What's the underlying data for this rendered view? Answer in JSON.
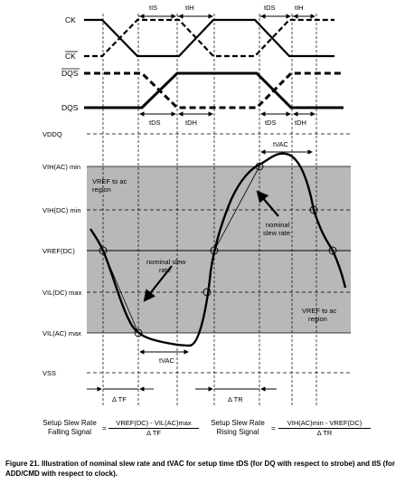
{
  "signals": {
    "ck": "CK",
    "ck_bar": "CK",
    "dqs_bar": "DQS",
    "dqs": "DQS"
  },
  "timing_top": {
    "tis_1": "tIS",
    "tih_1": "tIH",
    "tds_2": "tDS",
    "tih_2": "tIH"
  },
  "timing_dq": {
    "tds_1": "tDS",
    "tdh_1": "tDH",
    "tds_2": "tDS",
    "tdh_2": "tDH"
  },
  "levels": {
    "vddq": "VDDQ",
    "vih_ac": "VIH(AC) min",
    "vih_dc": "VIH(DC) min",
    "vref": "VREF(DC)",
    "vil_dc": "VIL(DC) max",
    "vil_ac": "VIL(AC) max",
    "vss": "VSS"
  },
  "annotations": {
    "vref_to_ac_region_top_1": "VREF to ac",
    "vref_to_ac_region_top_2": "region",
    "nominal_slew_rate_right_1": "nominal",
    "nominal_slew_rate_right_2": "slew rate",
    "nominal_slew_rate_left_1": "nominal slew",
    "nominal_slew_rate_left_2": "rate",
    "vref_to_ac_region_bottom_1": "VREF to ac",
    "vref_to_ac_region_bottom_2": "region",
    "tvac_bottom": "tVAC",
    "tvac_top": "tVAC",
    "delta_tf": "Δ TF",
    "delta_tr": "Δ TR"
  },
  "formulas": {
    "setup_falling_label_1": "Setup Slew Rate",
    "setup_falling_label_2": "Falling Signal",
    "falling_numerator": "VREF(DC) - VIL(AC)max",
    "falling_denominator": "Δ TF",
    "setup_rising_label_1": "Setup Slew Rate",
    "setup_rising_label_2": "Rising Signal",
    "rising_numerator": "VIH(AC)min - VREF(DC)",
    "rising_denominator": "Δ TR",
    "equals": "="
  },
  "caption": "Figure 21. Illustration of nominal slew rate and tVAC for setup time tDS (for DQ with respect to strobe) and tIS (for ADD/CMD with respect to clock).",
  "colors": {
    "region_fill": "#b8b8b8",
    "vref_label": "#1f1f8f"
  }
}
